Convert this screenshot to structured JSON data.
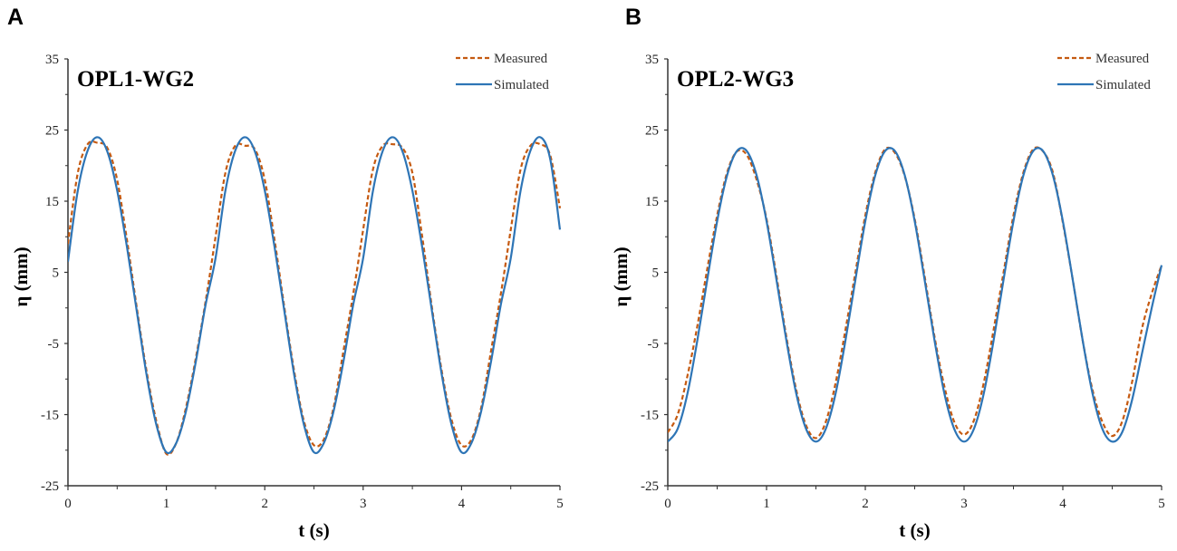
{
  "chart_data": [
    {
      "type": "line",
      "panel": "A",
      "title": "OPL1-WG2",
      "xlabel": "t (s)",
      "ylabel": "η (mm)",
      "xlim": [
        0,
        5
      ],
      "ylim": [
        -25,
        35
      ],
      "xticks": [
        "0",
        "1",
        "2",
        "3",
        "4",
        "5"
      ],
      "yticks": [
        "35",
        "25",
        "15",
        "5",
        "-5",
        "-15",
        "-25"
      ],
      "legend_position": "top-right",
      "grid": false,
      "x": [
        0,
        0.1,
        0.2,
        0.3,
        0.4,
        0.5,
        0.6,
        0.7,
        0.8,
        0.9,
        1.0,
        1.1,
        1.2,
        1.3,
        1.4,
        1.5,
        1.6,
        1.7,
        1.8,
        1.9,
        2.0,
        2.1,
        2.2,
        2.3,
        2.4,
        2.5,
        2.6,
        2.7,
        2.8,
        2.9,
        3.0,
        3.1,
        3.2,
        3.3,
        3.4,
        3.5,
        3.6,
        3.7,
        3.8,
        3.9,
        4.0,
        4.1,
        4.2,
        4.3,
        4.4,
        4.5,
        4.6,
        4.7,
        4.8,
        4.9,
        5.0
      ],
      "series": [
        {
          "name": "Measured",
          "color": "#C55A11",
          "style": "dashed",
          "values": [
            9,
            19,
            23,
            23.2,
            22.5,
            18,
            9.5,
            0,
            -9,
            -16,
            -20.5,
            -19,
            -14,
            -7,
            1,
            10,
            19,
            22.8,
            22.8,
            22.3,
            18,
            9.5,
            0,
            -9,
            -16,
            -19.3,
            -18.5,
            -14,
            -6,
            2,
            11,
            19.5,
            22.8,
            23,
            22.5,
            19,
            10,
            0,
            -9,
            -15.8,
            -19.3,
            -18.5,
            -14,
            -6,
            2,
            11,
            19.5,
            22.8,
            23,
            21.5,
            14
          ]
        },
        {
          "name": "Simulated",
          "color": "#2E75B6",
          "style": "solid",
          "values": [
            6.5,
            16.5,
            22.1,
            24,
            22,
            16.5,
            8.5,
            -0.5,
            -9.5,
            -16.5,
            -20.3,
            -19,
            -14.5,
            -7.5,
            0.5,
            7,
            16.5,
            22.1,
            24,
            22,
            16.5,
            8.5,
            -0.5,
            -9.5,
            -16.5,
            -20.3,
            -19,
            -14.5,
            -7.5,
            0.5,
            7,
            16.5,
            22.1,
            24,
            22,
            16.5,
            8.5,
            -0.5,
            -9.5,
            -16.5,
            -20.3,
            -19,
            -14.5,
            -7.5,
            0.5,
            7,
            16.5,
            22.1,
            24,
            21,
            11
          ]
        }
      ]
    },
    {
      "type": "line",
      "panel": "B",
      "title": "OPL2-WG3",
      "xlabel": "t (s)",
      "ylabel": "η (mm)",
      "xlim": [
        0,
        5
      ],
      "ylim": [
        -25,
        35
      ],
      "xticks": [
        "0",
        "1",
        "2",
        "3",
        "4",
        "5"
      ],
      "yticks": [
        "35",
        "25",
        "15",
        "5",
        "-5",
        "-15",
        "-25"
      ],
      "legend_position": "top-right",
      "grid": false,
      "x": [
        0,
        0.1,
        0.2,
        0.3,
        0.4,
        0.5,
        0.6,
        0.7,
        0.8,
        0.9,
        1.0,
        1.1,
        1.2,
        1.3,
        1.4,
        1.5,
        1.6,
        1.7,
        1.8,
        1.9,
        2.0,
        2.1,
        2.2,
        2.3,
        2.4,
        2.5,
        2.6,
        2.7,
        2.8,
        2.9,
        3.0,
        3.1,
        3.2,
        3.3,
        3.4,
        3.5,
        3.6,
        3.7,
        3.8,
        3.9,
        4.0,
        4.1,
        4.2,
        4.3,
        4.4,
        4.5,
        4.6,
        4.7,
        4.8,
        4.9,
        5.0
      ],
      "series": [
        {
          "name": "Measured",
          "color": "#C55A11",
          "style": "dashed",
          "values": [
            -17.5,
            -15,
            -9.5,
            -2.5,
            5.5,
            13,
            19,
            22,
            21.5,
            18,
            12.5,
            4.5,
            -4,
            -11.5,
            -16.5,
            -18.3,
            -16,
            -10.5,
            -3,
            5,
            13,
            19,
            22.3,
            21.8,
            18.5,
            12.5,
            4.5,
            -4,
            -11,
            -16,
            -17.8,
            -15.8,
            -10.5,
            -3,
            5,
            13,
            19,
            22.3,
            22,
            19,
            12,
            4,
            -4.5,
            -11.5,
            -16,
            -18,
            -16,
            -10.5,
            -3,
            2,
            6
          ]
        },
        {
          "name": "Simulated",
          "color": "#2E75B6",
          "style": "solid",
          "values": [
            -18.8,
            -17,
            -12,
            -4.5,
            4,
            12.2,
            18.6,
            22.05,
            22.05,
            18.6,
            12.2,
            4,
            -4.5,
            -12,
            -17,
            -18.8,
            -17,
            -12,
            -4.5,
            4,
            12.2,
            18.6,
            22.05,
            22.05,
            18.6,
            12.2,
            4,
            -4.5,
            -12,
            -17,
            -18.8,
            -17,
            -12,
            -4.5,
            4,
            12.2,
            18.6,
            22.05,
            22.05,
            18.6,
            12.2,
            4,
            -4.5,
            -12,
            -17,
            -18.8,
            -17.5,
            -13,
            -6.5,
            0,
            6
          ]
        }
      ]
    }
  ]
}
